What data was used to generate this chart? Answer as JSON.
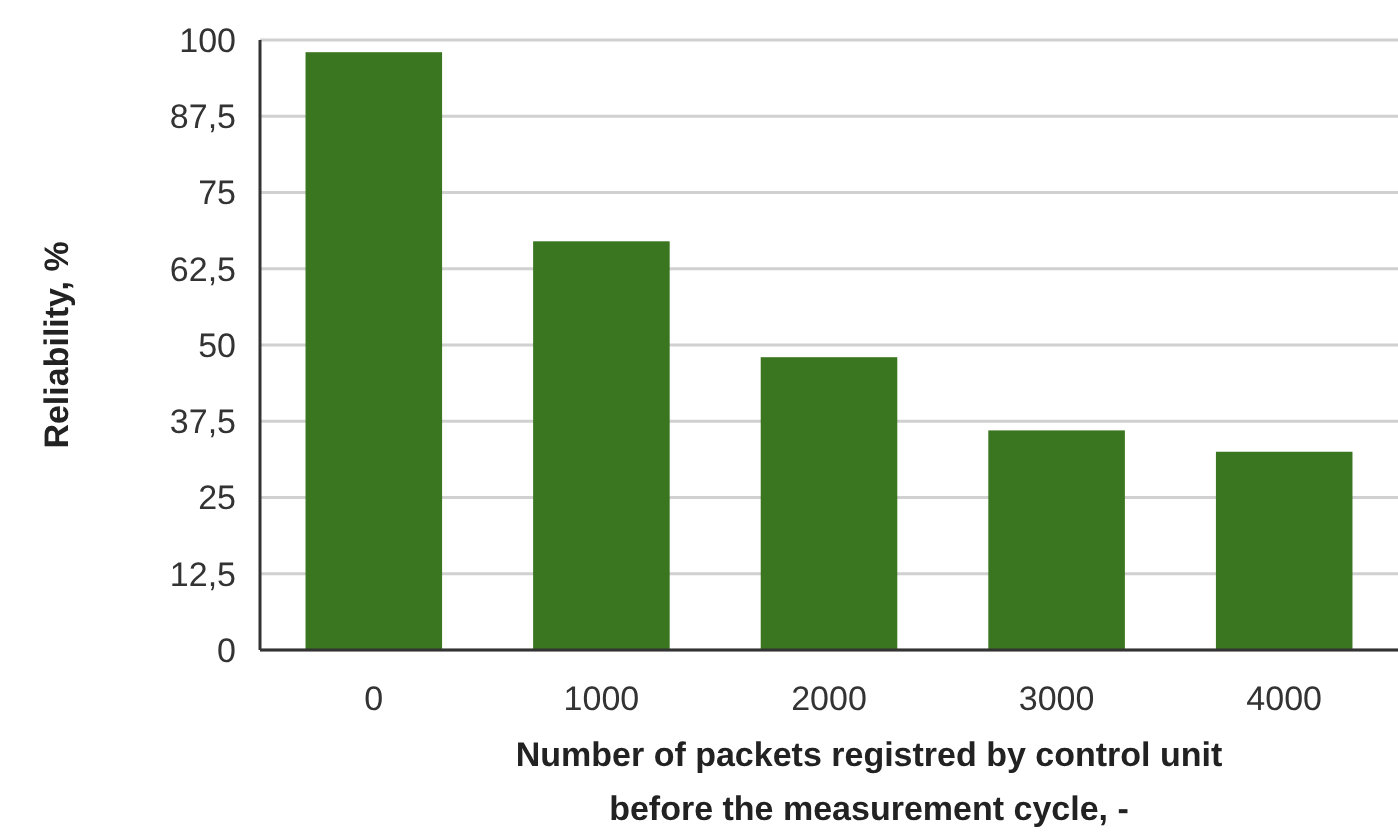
{
  "chart_data": {
    "type": "bar",
    "xlabel": "Number of packets registred by control unit\nbefore the measurement cycle, -",
    "ylabel": "Reliability, %",
    "categories": [
      "0",
      "1000",
      "2000",
      "3000",
      "4000"
    ],
    "values": [
      98,
      67,
      48,
      36,
      32.5
    ],
    "color": "#3a761f",
    "ylim": [
      0,
      100
    ],
    "yticks": [
      0,
      {
        "value": 12.5,
        "label": "12,5"
      },
      25,
      {
        "value": 37.5,
        "label": "37,5"
      },
      50,
      {
        "value": 62.5,
        "label": "62,5"
      },
      75,
      {
        "value": 87.5,
        "label": "87,5"
      },
      100
    ],
    "grid": "y"
  }
}
